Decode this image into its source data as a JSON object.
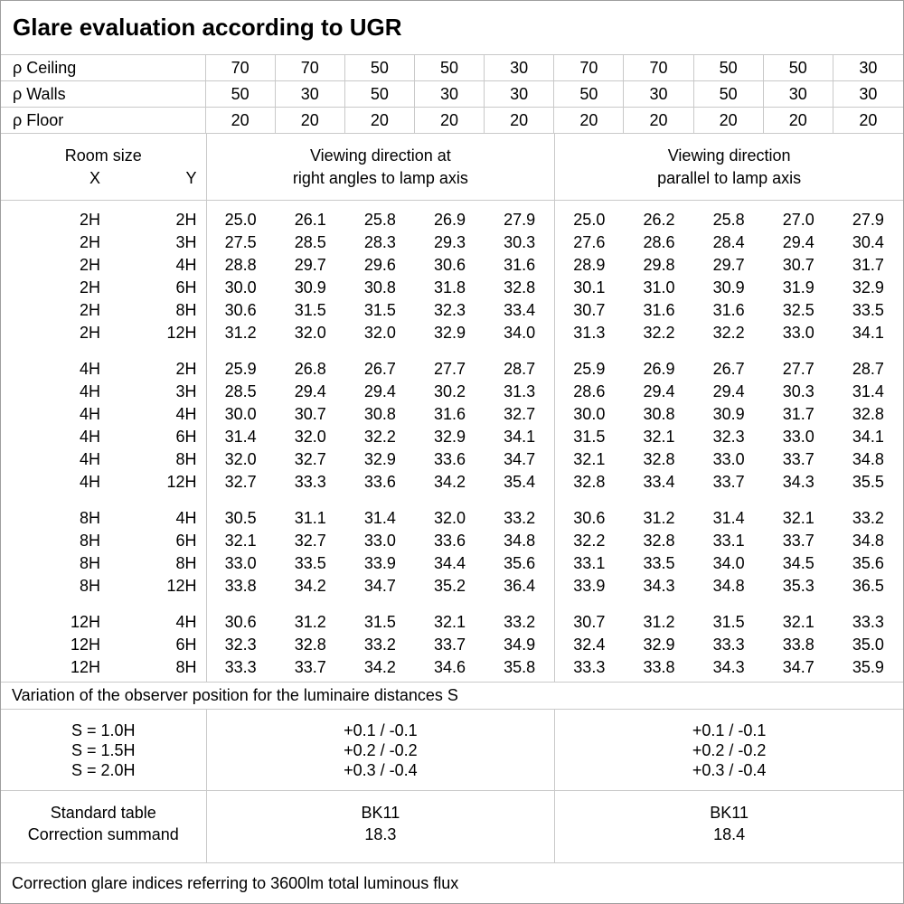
{
  "title": "Glare evaluation according to UGR",
  "reflectance_rows": [
    {
      "label": "ρ Ceiling",
      "values": [
        "70",
        "70",
        "50",
        "50",
        "30",
        "70",
        "70",
        "50",
        "50",
        "30"
      ]
    },
    {
      "label": "ρ Walls",
      "values": [
        "50",
        "30",
        "50",
        "30",
        "30",
        "50",
        "30",
        "50",
        "30",
        "30"
      ]
    },
    {
      "label": "ρ Floor",
      "values": [
        "20",
        "20",
        "20",
        "20",
        "20",
        "20",
        "20",
        "20",
        "20",
        "20"
      ]
    }
  ],
  "header": {
    "room_size": "Room size",
    "x": "X",
    "y": "Y",
    "group1_line1": "Viewing direction at",
    "group1_line2": "right angles to lamp axis",
    "group2_line1": "Viewing direction",
    "group2_line2": "parallel to lamp axis"
  },
  "ugr_blocks": [
    {
      "rows": [
        {
          "x": "2H",
          "y": "2H",
          "values": [
            "25.0",
            "26.1",
            "25.8",
            "26.9",
            "27.9",
            "25.0",
            "26.2",
            "25.8",
            "27.0",
            "27.9"
          ]
        },
        {
          "x": "2H",
          "y": "3H",
          "values": [
            "27.5",
            "28.5",
            "28.3",
            "29.3",
            "30.3",
            "27.6",
            "28.6",
            "28.4",
            "29.4",
            "30.4"
          ]
        },
        {
          "x": "2H",
          "y": "4H",
          "values": [
            "28.8",
            "29.7",
            "29.6",
            "30.6",
            "31.6",
            "28.9",
            "29.8",
            "29.7",
            "30.7",
            "31.7"
          ]
        },
        {
          "x": "2H",
          "y": "6H",
          "values": [
            "30.0",
            "30.9",
            "30.8",
            "31.8",
            "32.8",
            "30.1",
            "31.0",
            "30.9",
            "31.9",
            "32.9"
          ]
        },
        {
          "x": "2H",
          "y": "8H",
          "values": [
            "30.6",
            "31.5",
            "31.5",
            "32.3",
            "33.4",
            "30.7",
            "31.6",
            "31.6",
            "32.5",
            "33.5"
          ]
        },
        {
          "x": "2H",
          "y": "12H",
          "values": [
            "31.2",
            "32.0",
            "32.0",
            "32.9",
            "34.0",
            "31.3",
            "32.2",
            "32.2",
            "33.0",
            "34.1"
          ]
        }
      ]
    },
    {
      "rows": [
        {
          "x": "4H",
          "y": "2H",
          "values": [
            "25.9",
            "26.8",
            "26.7",
            "27.7",
            "28.7",
            "25.9",
            "26.9",
            "26.7",
            "27.7",
            "28.7"
          ]
        },
        {
          "x": "4H",
          "y": "3H",
          "values": [
            "28.5",
            "29.4",
            "29.4",
            "30.2",
            "31.3",
            "28.6",
            "29.4",
            "29.4",
            "30.3",
            "31.4"
          ]
        },
        {
          "x": "4H",
          "y": "4H",
          "values": [
            "30.0",
            "30.7",
            "30.8",
            "31.6",
            "32.7",
            "30.0",
            "30.8",
            "30.9",
            "31.7",
            "32.8"
          ]
        },
        {
          "x": "4H",
          "y": "6H",
          "values": [
            "31.4",
            "32.0",
            "32.2",
            "32.9",
            "34.1",
            "31.5",
            "32.1",
            "32.3",
            "33.0",
            "34.1"
          ]
        },
        {
          "x": "4H",
          "y": "8H",
          "values": [
            "32.0",
            "32.7",
            "32.9",
            "33.6",
            "34.7",
            "32.1",
            "32.8",
            "33.0",
            "33.7",
            "34.8"
          ]
        },
        {
          "x": "4H",
          "y": "12H",
          "values": [
            "32.7",
            "33.3",
            "33.6",
            "34.2",
            "35.4",
            "32.8",
            "33.4",
            "33.7",
            "34.3",
            "35.5"
          ]
        }
      ]
    },
    {
      "rows": [
        {
          "x": "8H",
          "y": "4H",
          "values": [
            "30.5",
            "31.1",
            "31.4",
            "32.0",
            "33.2",
            "30.6",
            "31.2",
            "31.4",
            "32.1",
            "33.2"
          ]
        },
        {
          "x": "8H",
          "y": "6H",
          "values": [
            "32.1",
            "32.7",
            "33.0",
            "33.6",
            "34.8",
            "32.2",
            "32.8",
            "33.1",
            "33.7",
            "34.8"
          ]
        },
        {
          "x": "8H",
          "y": "8H",
          "values": [
            "33.0",
            "33.5",
            "33.9",
            "34.4",
            "35.6",
            "33.1",
            "33.5",
            "34.0",
            "34.5",
            "35.6"
          ]
        },
        {
          "x": "8H",
          "y": "12H",
          "values": [
            "33.8",
            "34.2",
            "34.7",
            "35.2",
            "36.4",
            "33.9",
            "34.3",
            "34.8",
            "35.3",
            "36.5"
          ]
        }
      ]
    },
    {
      "rows": [
        {
          "x": "12H",
          "y": "4H",
          "values": [
            "30.6",
            "31.2",
            "31.5",
            "32.1",
            "33.2",
            "30.7",
            "31.2",
            "31.5",
            "32.1",
            "33.3"
          ]
        },
        {
          "x": "12H",
          "y": "6H",
          "values": [
            "32.3",
            "32.8",
            "33.2",
            "33.7",
            "34.9",
            "32.4",
            "32.9",
            "33.3",
            "33.8",
            "35.0"
          ]
        },
        {
          "x": "12H",
          "y": "8H",
          "values": [
            "33.3",
            "33.7",
            "34.2",
            "34.6",
            "35.8",
            "33.3",
            "33.8",
            "34.3",
            "34.7",
            "35.9"
          ]
        }
      ]
    }
  ],
  "variation_note": "Variation of the observer position for the luminaire distances S",
  "s_rows": [
    {
      "label": "S = 1.0H",
      "right_angles": "+0.1 / -0.1",
      "parallel": "+0.1 / -0.1"
    },
    {
      "label": "S = 1.5H",
      "right_angles": "+0.2 / -0.2",
      "parallel": "+0.2 / -0.2"
    },
    {
      "label": "S = 2.0H",
      "right_angles": "+0.3 / -0.4",
      "parallel": "+0.3 / -0.4"
    }
  ],
  "summary": {
    "standard_table_label": "Standard table",
    "correction_summand_label": "Correction summand",
    "right_angles": {
      "standard_table": "BK11",
      "correction_summand": "18.3"
    },
    "parallel": {
      "standard_table": "BK11",
      "correction_summand": "18.4"
    }
  },
  "footer_note": "Correction glare indices referring to 3600lm total luminous flux"
}
